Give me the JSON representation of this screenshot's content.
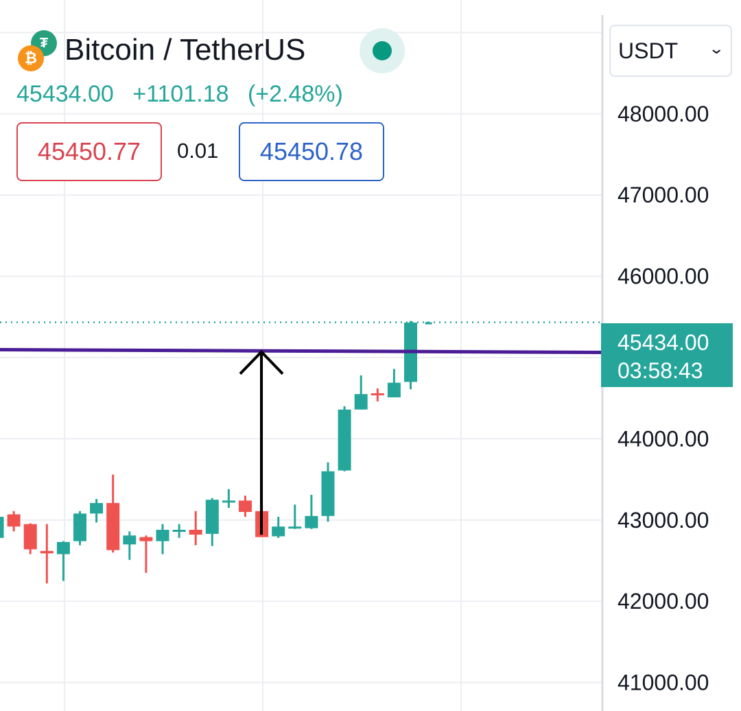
{
  "header": {
    "base_icon": "bitcoin-icon",
    "quote_icon": "tether-icon",
    "title": "Bitcoin / TetherUS",
    "last_price": "45434.00",
    "change": "+1101.18",
    "change_pct": "(+2.48%)",
    "sell_price": "45450.77",
    "spread": "0.01",
    "buy_price": "45450.78",
    "market_status_icon": "market-open-dot-icon"
  },
  "currency_select": {
    "value": "USDT"
  },
  "price_label": {
    "price": "45434.00",
    "countdown": "03:58:43"
  },
  "colors": {
    "up": "#26a69a",
    "down": "#ef5350",
    "sell": "#d9434f",
    "buy": "#2c63c9",
    "horizontal_line": "#4a1d96"
  },
  "chart_data": {
    "type": "candlestick",
    "y_axis_ticks": [
      "48000.00",
      "47000.00",
      "46000.00",
      "44000.00",
      "43000.00",
      "42000.00",
      "41000.00"
    ],
    "ylim": [
      40650,
      49400
    ],
    "last_price": 45434.0,
    "horizontal_line": 45080,
    "annotation": {
      "type": "arrow-up",
      "from": 42820,
      "to": 45070
    },
    "grid": true,
    "candles": [
      {
        "o": 42780,
        "h": 43040,
        "l": 42780,
        "c": 43040
      },
      {
        "o": 43070,
        "h": 43110,
        "l": 42860,
        "c": 42920
      },
      {
        "o": 42950,
        "h": 42960,
        "l": 42580,
        "c": 42640
      },
      {
        "o": 42620,
        "h": 42950,
        "l": 42220,
        "c": 42590
      },
      {
        "o": 42580,
        "h": 42740,
        "l": 42250,
        "c": 42730
      },
      {
        "o": 42740,
        "h": 43110,
        "l": 42690,
        "c": 43080
      },
      {
        "o": 43080,
        "h": 43260,
        "l": 42970,
        "c": 43210
      },
      {
        "o": 43210,
        "h": 43560,
        "l": 42600,
        "c": 42630
      },
      {
        "o": 42700,
        "h": 42860,
        "l": 42510,
        "c": 42810
      },
      {
        "o": 42790,
        "h": 42810,
        "l": 42350,
        "c": 42740
      },
      {
        "o": 42740,
        "h": 42950,
        "l": 42580,
        "c": 42880
      },
      {
        "o": 42880,
        "h": 42950,
        "l": 42780,
        "c": 42880
      },
      {
        "o": 42880,
        "h": 43110,
        "l": 42690,
        "c": 42820
      },
      {
        "o": 42830,
        "h": 43270,
        "l": 42680,
        "c": 43250
      },
      {
        "o": 43240,
        "h": 43380,
        "l": 43150,
        "c": 43240
      },
      {
        "o": 43240,
        "h": 43300,
        "l": 43040,
        "c": 43100
      },
      {
        "o": 43110,
        "h": 43190,
        "l": 42790,
        "c": 42790
      },
      {
        "o": 42800,
        "h": 43040,
        "l": 42780,
        "c": 42920
      },
      {
        "o": 42920,
        "h": 43190,
        "l": 42890,
        "c": 42920
      },
      {
        "o": 42900,
        "h": 43310,
        "l": 42890,
        "c": 43050
      },
      {
        "o": 43050,
        "h": 43710,
        "l": 42980,
        "c": 43600
      },
      {
        "o": 43610,
        "h": 44400,
        "l": 43600,
        "c": 44360
      },
      {
        "o": 44360,
        "h": 44780,
        "l": 44360,
        "c": 44550
      },
      {
        "o": 44560,
        "h": 44620,
        "l": 44460,
        "c": 44540
      },
      {
        "o": 44510,
        "h": 44860,
        "l": 44510,
        "c": 44690
      },
      {
        "o": 44700,
        "h": 45450,
        "l": 44610,
        "c": 45430
      },
      {
        "o": 45434,
        "h": 45440,
        "l": 45430,
        "c": 45434
      }
    ]
  }
}
